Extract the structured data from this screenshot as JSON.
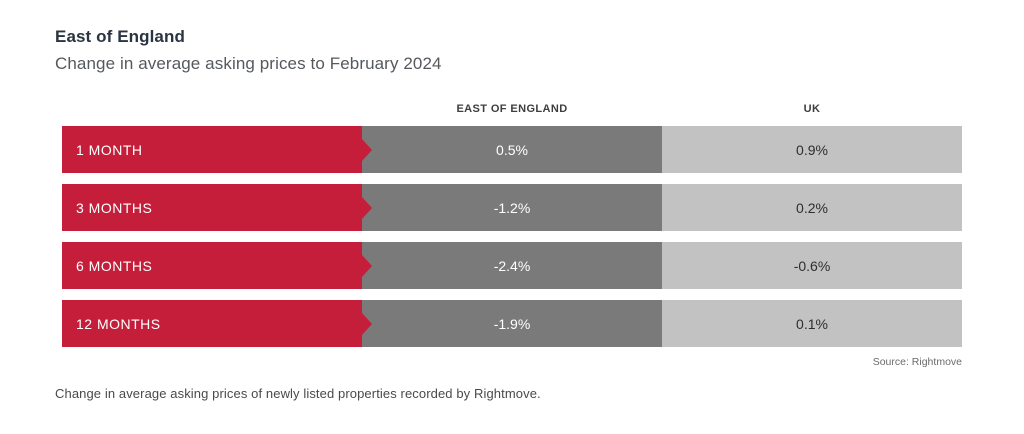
{
  "header": {
    "title": "East of England",
    "subtitle": "Change in average asking prices to February 2024"
  },
  "table": {
    "columns": [
      "EAST OF ENGLAND",
      "UK"
    ],
    "rows": [
      {
        "label": "1 MONTH",
        "values": [
          "0.5%",
          "0.9%"
        ]
      },
      {
        "label": "3 MONTHS",
        "values": [
          "-1.2%",
          "0.2%"
        ]
      },
      {
        "label": "6 MONTHS",
        "values": [
          "-2.4%",
          "-0.6%"
        ]
      },
      {
        "label": "12 MONTHS",
        "values": [
          "-1.9%",
          "0.1%"
        ]
      }
    ]
  },
  "footer": {
    "source": "Source: Rightmove",
    "note": "Change in average asking prices of newly listed properties recorded by Rightmove."
  },
  "colors": {
    "bar_red": "#c41e3a",
    "cell_dark_gray": "#7a7a7a",
    "cell_light_gray": "#c2c2c2",
    "title_color": "#2b3442",
    "subtitle_color": "#55595e"
  },
  "chart_data": {
    "type": "table",
    "title": "East of England",
    "subtitle": "Change in average asking prices to February 2024",
    "categories": [
      "1 MONTH",
      "3 MONTHS",
      "6 MONTHS",
      "12 MONTHS"
    ],
    "series": [
      {
        "name": "EAST OF ENGLAND",
        "values": [
          0.5,
          -1.2,
          -2.4,
          -1.9
        ],
        "unit": "%"
      },
      {
        "name": "UK",
        "values": [
          0.9,
          0.2,
          -0.6,
          0.1
        ],
        "unit": "%"
      }
    ],
    "source": "Source: Rightmove",
    "note": "Change in average asking prices of newly listed properties recorded by Rightmove.",
    "legend_position": "top",
    "grid": false
  }
}
